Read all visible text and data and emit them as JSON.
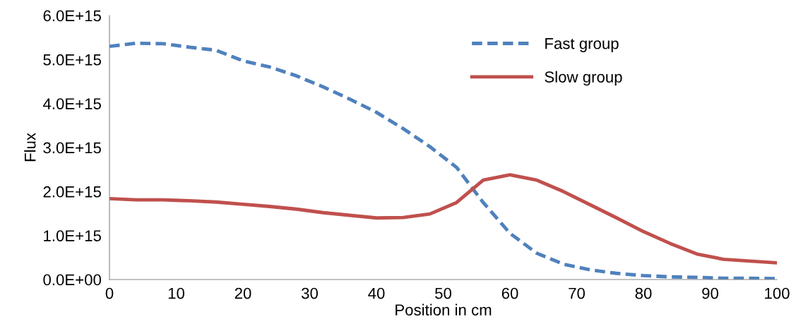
{
  "chart_data": {
    "type": "line",
    "xlabel": "Position in cm",
    "ylabel": "Flux",
    "x": [
      0,
      4,
      8,
      12,
      16,
      20,
      24,
      28,
      32,
      36,
      40,
      44,
      48,
      52,
      56,
      60,
      64,
      68,
      72,
      76,
      80,
      84,
      88,
      92,
      96,
      100
    ],
    "series": [
      {
        "name": "Fast group",
        "color": "#4f81bd",
        "line_style": "dashed",
        "values": [
          5300000000000000.0,
          5370000000000000.0,
          5360000000000000.0,
          5280000000000000.0,
          5210000000000000.0,
          4970000000000000.0,
          4830000000000000.0,
          4630000000000000.0,
          4380000000000000.0,
          4100000000000000.0,
          3800000000000000.0,
          3430000000000000.0,
          3020000000000000.0,
          2550000000000000.0,
          1750000000000000.0,
          1050000000000000.0,
          600000000000000.0,
          350000000000000.0,
          220000000000000.0,
          140000000000000.0,
          90000000000000.0,
          60000000000000.0,
          50000000000000.0,
          30000000000000.0,
          30000000000000.0,
          20000000000000.0
        ]
      },
      {
        "name": "Slow group",
        "color": "#c0504d",
        "line_style": "solid",
        "values": [
          1840000000000000.0,
          1810000000000000.0,
          1810000000000000.0,
          1790000000000000.0,
          1760000000000000.0,
          1710000000000000.0,
          1660000000000000.0,
          1600000000000000.0,
          1520000000000000.0,
          1460000000000000.0,
          1400000000000000.0,
          1410000000000000.0,
          1490000000000000.0,
          1750000000000000.0,
          2260000000000000.0,
          2380000000000000.0,
          2260000000000000.0,
          2000000000000000.0,
          1700000000000000.0,
          1400000000000000.0,
          1090000000000000.0,
          820000000000000.0,
          580000000000000.0,
          460000000000000.0,
          420000000000000.0,
          380000000000000.0
        ]
      }
    ],
    "xlim": [
      0,
      100
    ],
    "xticks": [
      0,
      10,
      20,
      30,
      40,
      50,
      60,
      70,
      80,
      90,
      100
    ],
    "ylim": [
      0,
      6000000000000000.0
    ],
    "yticks": [
      {
        "value": 0,
        "label": "0.0E+00"
      },
      {
        "value": 1000000000000000.0,
        "label": "1.0E+15"
      },
      {
        "value": 2000000000000000.0,
        "label": "2.0E+15"
      },
      {
        "value": 3000000000000000.0,
        "label": "3.0E+15"
      },
      {
        "value": 4000000000000000.0,
        "label": "4.0E+15"
      },
      {
        "value": 5000000000000000.0,
        "label": "5.0E+15"
      },
      {
        "value": 6000000000000000.0,
        "label": "6.0E+15"
      }
    ],
    "grid": false,
    "legend": "top right",
    "marker": "none"
  }
}
